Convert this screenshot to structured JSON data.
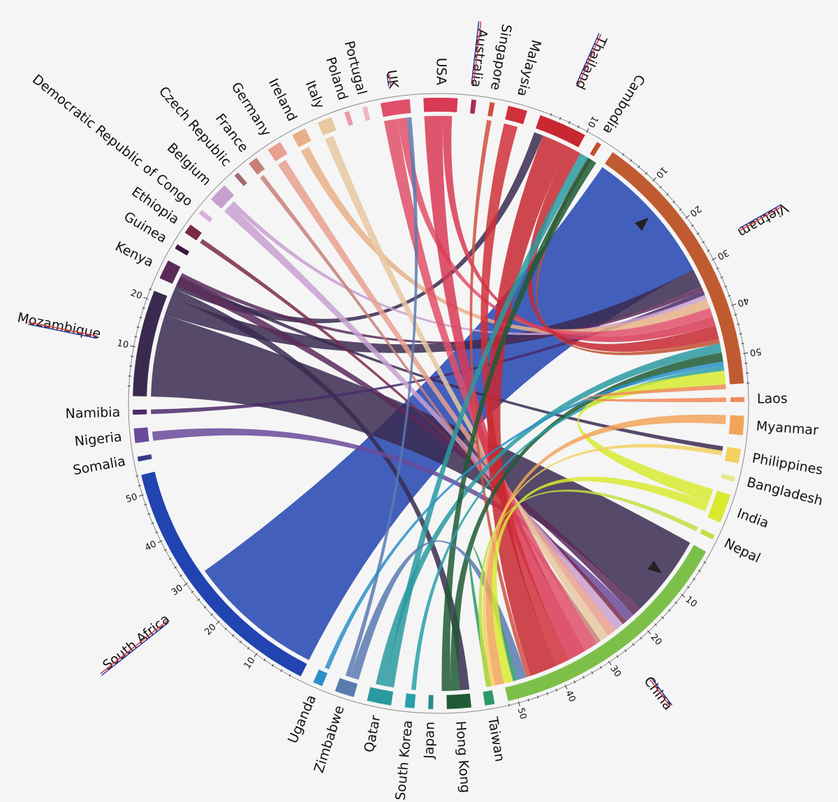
{
  "title": "",
  "outer_ring_color": "#888888",
  "countries": [
    {
      "name": "Laos",
      "size": 1,
      "color": "#f08a5a",
      "mark": false
    },
    {
      "name": "Myanmar",
      "size": 4,
      "color": "#f2a55a",
      "mark": false
    },
    {
      "name": "Philippines",
      "size": 3,
      "color": "#f2d060",
      "mark": false
    },
    {
      "name": "Bangladesh",
      "size": 1,
      "color": "#e8e890",
      "mark": false
    },
    {
      "name": "India",
      "size": 6,
      "color": "#d8ea30",
      "mark": false
    },
    {
      "name": "Nepal",
      "size": 1,
      "color": "#c0e040",
      "mark": false
    },
    {
      "name": "China",
      "size": 52,
      "color": "#7cc04a",
      "mark": true,
      "ticks": [
        10,
        20,
        30,
        40,
        50
      ]
    },
    {
      "name": "Taiwan",
      "size": 2,
      "color": "#2a9a6a",
      "mark": false
    },
    {
      "name": "Hong Kong",
      "size": 5,
      "color": "#1f5a35",
      "mark": false
    },
    {
      "name": "Japan",
      "size": 1,
      "color": "#2a8a8a",
      "mark": false
    },
    {
      "name": "South Korea",
      "size": 2,
      "color": "#2aa0a8",
      "mark": false
    },
    {
      "name": "Qatar",
      "size": 5,
      "color": "#2a9aa0",
      "mark": false
    },
    {
      "name": "Zimbabwe",
      "size": 4,
      "color": "#5a7ab0",
      "mark": false
    },
    {
      "name": "Uganda",
      "size": 2,
      "color": "#2a90c8",
      "mark": false
    },
    {
      "name": "South Africa",
      "size": 54,
      "color": "#2244b0",
      "mark": true,
      "ticks": [
        10,
        20,
        30,
        40,
        50
      ]
    },
    {
      "name": "Somalia",
      "size": 1,
      "color": "#3a3a8a",
      "mark": false
    },
    {
      "name": "Nigeria",
      "size": 3,
      "color": "#6a4a9a",
      "mark": false
    },
    {
      "name": "Namibia",
      "size": 1,
      "color": "#4a2a6a",
      "mark": false
    },
    {
      "name": "Mozambique",
      "size": 22,
      "color": "#3a2a50",
      "mark": true,
      "ticks": [
        10,
        20
      ]
    },
    {
      "name": "Kenya",
      "size": 4,
      "color": "#5a2a5a",
      "mark": false
    },
    {
      "name": "Guinea",
      "size": 1,
      "color": "#3a1a3a",
      "mark": false
    },
    {
      "name": "Ethiopia",
      "size": 2,
      "color": "#7a2a4a",
      "mark": false
    },
    {
      "name": "Democratic Republic of Congo",
      "size": 1,
      "color": "#d8b0d8",
      "mark": false
    },
    {
      "name": "Belgium",
      "size": 4,
      "color": "#c8a0d0",
      "mark": false
    },
    {
      "name": "Czech Republic",
      "size": 1,
      "color": "#a06a70",
      "mark": false
    },
    {
      "name": "France",
      "size": 2,
      "color": "#c8807a",
      "mark": false
    },
    {
      "name": "Germany",
      "size": 3,
      "color": "#e8a090",
      "mark": false
    },
    {
      "name": "Ireland",
      "size": 3,
      "color": "#e8b088",
      "mark": false
    },
    {
      "name": "Italy",
      "size": 3,
      "color": "#e8c8a0",
      "mark": false
    },
    {
      "name": "Poland",
      "size": 1,
      "color": "#e89aa8",
      "mark": false
    },
    {
      "name": "Portugal",
      "size": 1,
      "color": "#f0b8c0",
      "mark": false
    },
    {
      "name": "UK",
      "size": 6,
      "color": "#e0506a",
      "mark": true
    },
    {
      "name": "USA",
      "size": 7,
      "color": "#d83a55",
      "mark": false
    },
    {
      "name": "Australia",
      "size": 1,
      "color": "#a83050",
      "mark": true
    },
    {
      "name": "Singapore",
      "size": 1,
      "color": "#d05040",
      "mark": false
    },
    {
      "name": "Malaysia",
      "size": 4,
      "color": "#d0303a",
      "mark": false
    },
    {
      "name": "Thailand",
      "size": 10,
      "color": "#c82830",
      "mark": true,
      "ticks": [
        10
      ]
    },
    {
      "name": "Cambodia",
      "size": 1,
      "color": "#c05030",
      "mark": false
    },
    {
      "name": "Vietnam",
      "size": 56,
      "color": "#c05a30",
      "mark": true,
      "ticks": [
        10,
        20,
        30,
        40,
        50
      ]
    }
  ],
  "flows": [
    {
      "from": "South Africa",
      "to": "Vietnam",
      "value": 30,
      "arrow": true
    },
    {
      "from": "Mozambique",
      "to": "China",
      "value": 18,
      "arrow": true
    },
    {
      "from": "Mozambique",
      "to": "Vietnam",
      "value": 4
    },
    {
      "from": "Mozambique",
      "to": "Hong Kong",
      "value": 2
    },
    {
      "from": "Mozambique",
      "to": "Thailand",
      "value": 2
    },
    {
      "from": "Mozambique",
      "to": "Philippines",
      "value": 1
    },
    {
      "from": "Kenya",
      "to": "China",
      "value": 2
    },
    {
      "from": "Kenya",
      "to": "Vietnam",
      "value": 1
    },
    {
      "from": "Nigeria",
      "to": "China",
      "value": 2
    },
    {
      "from": "Ethiopia",
      "to": "China",
      "value": 1
    },
    {
      "from": "Namibia",
      "to": "Vietnam",
      "value": 1
    },
    {
      "from": "Belgium",
      "to": "China",
      "value": 2
    },
    {
      "from": "Belgium",
      "to": "Vietnam",
      "value": 1
    },
    {
      "from": "Germany",
      "to": "China",
      "value": 2
    },
    {
      "from": "Ireland",
      "to": "Vietnam",
      "value": 2
    },
    {
      "from": "Italy",
      "to": "China",
      "value": 2
    },
    {
      "from": "France",
      "to": "China",
      "value": 1
    },
    {
      "from": "UK",
      "to": "China",
      "value": 3
    },
    {
      "from": "UK",
      "to": "Vietnam",
      "value": 2
    },
    {
      "from": "USA",
      "to": "China",
      "value": 4
    },
    {
      "from": "USA",
      "to": "Vietnam",
      "value": 2
    },
    {
      "from": "Malaysia",
      "to": "China",
      "value": 3
    },
    {
      "from": "Thailand",
      "to": "China",
      "value": 6
    },
    {
      "from": "Thailand",
      "to": "Vietnam",
      "value": 3
    },
    {
      "from": "Singapore",
      "to": "China",
      "value": 1
    },
    {
      "from": "Cambodia",
      "to": "Vietnam",
      "value": 1
    },
    {
      "from": "Qatar",
      "to": "Thailand",
      "value": 2
    },
    {
      "from": "Qatar",
      "to": "Vietnam",
      "value": 2
    },
    {
      "from": "Hong Kong",
      "to": "Vietnam",
      "value": 2
    },
    {
      "from": "Hong Kong",
      "to": "Thailand",
      "value": 2
    },
    {
      "from": "Zimbabwe",
      "to": "China",
      "value": 2
    },
    {
      "from": "Zimbabwe",
      "to": "UK",
      "value": 1
    },
    {
      "from": "Uganda",
      "to": "Vietnam",
      "value": 1
    },
    {
      "from": "South Korea",
      "to": "Vietnam",
      "value": 1
    },
    {
      "from": "Taiwan",
      "to": "China",
      "value": 1
    },
    {
      "from": "India",
      "to": "Vietnam",
      "value": 3
    },
    {
      "from": "India",
      "to": "China",
      "value": 2
    },
    {
      "from": "Myanmar",
      "to": "China",
      "value": 2
    },
    {
      "from": "Philippines",
      "to": "China",
      "value": 1
    },
    {
      "from": "Laos",
      "to": "Vietnam",
      "value": 1
    },
    {
      "from": "Nepal",
      "to": "China",
      "value": 1
    }
  ]
}
